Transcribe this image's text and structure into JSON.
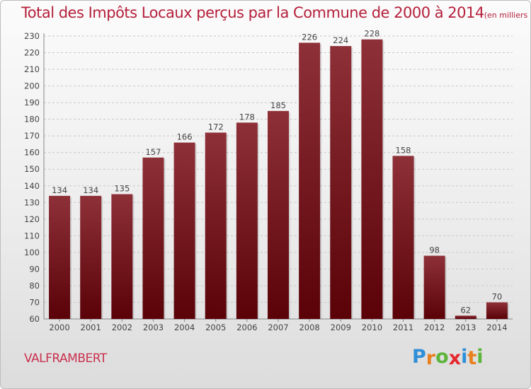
{
  "title": {
    "main": "Total des Impôts Locaux perçus par la Commune de 2000 à 2014",
    "unit": "(en milliers d'€)"
  },
  "commune_name": "VALFRAMBERT",
  "logo": {
    "text": "Proxiti",
    "letters": [
      "P",
      "r",
      "o",
      "x",
      "i",
      "t",
      "i"
    ],
    "colors": [
      "#2f8fd8",
      "#e8801f",
      "#5db43b",
      "#e5282d",
      "#2f8fd8",
      "#e8801f",
      "#5db43b"
    ]
  },
  "colors": {
    "bar_top": "#8e3038",
    "bar_bottom": "#5a0208",
    "title": "#b5203c",
    "grid": "#c8c8c8"
  },
  "chart_data": {
    "type": "bar",
    "title": "Total des Impôts Locaux perçus par la Commune de 2000 à 2014 (en milliers d'€)",
    "xlabel": "",
    "ylabel": "",
    "categories": [
      "2000",
      "2001",
      "2002",
      "2003",
      "2004",
      "2005",
      "2006",
      "2007",
      "2008",
      "2009",
      "2010",
      "2011",
      "2012",
      "2013",
      "2014"
    ],
    "values": [
      134,
      134,
      135,
      157,
      166,
      172,
      178,
      185,
      226,
      224,
      228,
      158,
      98,
      62,
      70
    ],
    "ylim": [
      60,
      230
    ],
    "yticks": [
      60,
      70,
      80,
      90,
      100,
      110,
      120,
      130,
      140,
      150,
      160,
      170,
      180,
      190,
      200,
      210,
      220,
      230
    ],
    "grid": true
  }
}
